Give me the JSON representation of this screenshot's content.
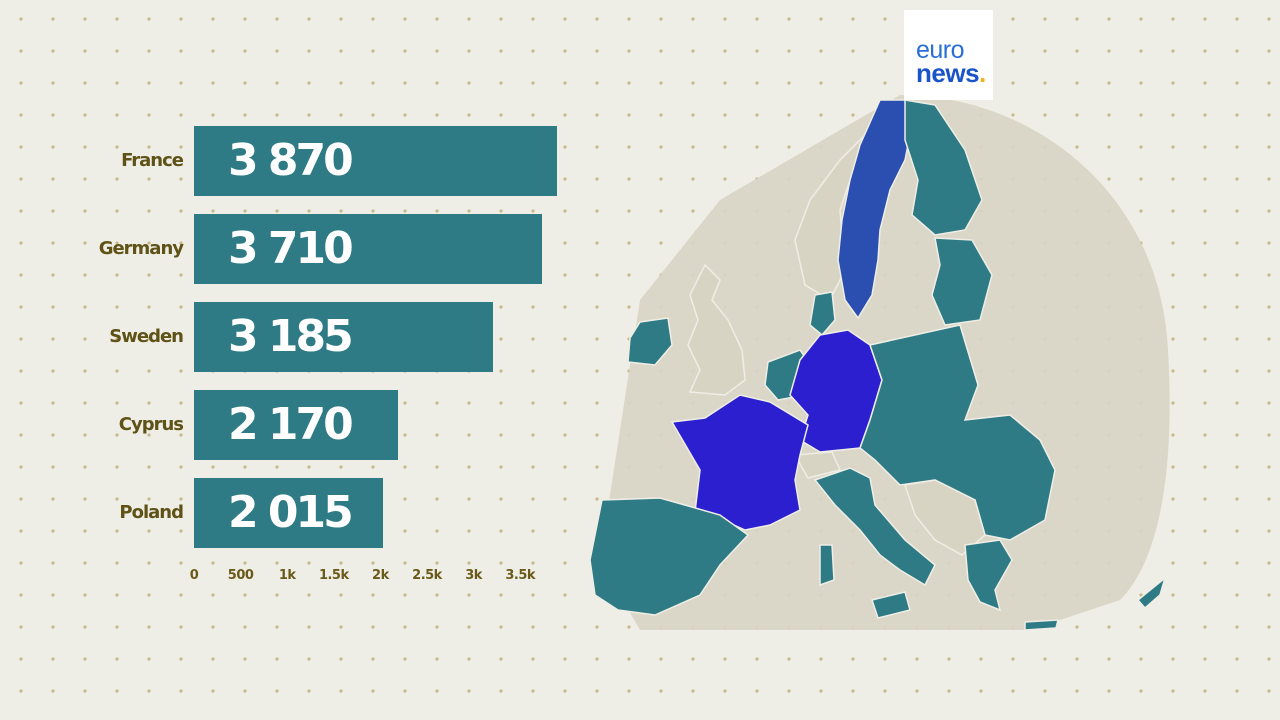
{
  "brand": {
    "line1": "euro",
    "line2": "news",
    "dot": "."
  },
  "chart_data": {
    "type": "bar",
    "orientation": "horizontal",
    "categories": [
      "France",
      "Germany",
      "Sweden",
      "Cyprus",
      "Poland"
    ],
    "values": [
      3870,
      3710,
      3185,
      2170,
      2015
    ],
    "value_labels": [
      "3 870",
      "3 710",
      "3 185",
      "2 170",
      "2 015"
    ],
    "xlim": [
      0,
      3870
    ],
    "x_ticks": [
      0,
      500,
      1000,
      1500,
      2000,
      2500,
      3000,
      3500
    ],
    "x_tick_labels": [
      "0",
      "500",
      "1k",
      "1.5k",
      "2k",
      "2.5k",
      "3k",
      "3.5k"
    ],
    "bar_color": "#2e7b85",
    "grid": false
  },
  "map": {
    "highlight_countries": [
      "France",
      "Germany",
      "Sweden"
    ],
    "highlight_color": "#2b1fd0",
    "sweden_color": "#2a4fb0",
    "eu_color": "#2e7b85",
    "non_eu_color": "#d8d4c4"
  }
}
